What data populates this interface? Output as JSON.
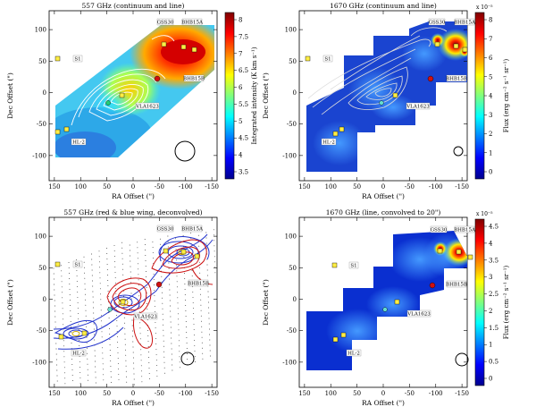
{
  "panels": [
    {
      "id": "p1",
      "title": "557 GHz (continuum and line)",
      "xlabel": "RA Offset (\")",
      "ylabel": "Dec Offset (\")",
      "colorbar": {
        "label": "Integrated intensity (K km s⁻¹)",
        "ticks": [
          "8",
          "7.5",
          "7",
          "6.5",
          "6",
          "5.5",
          "5",
          "4.5",
          "4",
          "3.5"
        ],
        "exponent": ""
      }
    },
    {
      "id": "p2",
      "title": "1670 GHz (continuum and line)",
      "xlabel": "RA Offset (\")",
      "ylabel": "Dec Offset (\")",
      "colorbar": {
        "label": "Flux (erg cm⁻² s⁻¹ sr⁻¹)",
        "ticks": [
          "8",
          "7",
          "6",
          "5",
          "4",
          "3",
          "2",
          "1",
          "0"
        ],
        "exponent": "x 10⁻⁵"
      }
    },
    {
      "id": "p3",
      "title": "557 GHz (red & blue wing, deconvolved)",
      "xlabel": "RA Offset (\")",
      "ylabel": "Dec Offset (\")",
      "colorbar": null
    },
    {
      "id": "p4",
      "title": "1670 GHz (line, convolved to 20\")",
      "xlabel": "RA Offset (\")",
      "ylabel": "Dec Offset (\")",
      "colorbar": {
        "label": "Flux (erg cm⁻² s⁻¹ sr⁻¹)",
        "ticks": [
          "4.5",
          "4",
          "3.5",
          "3",
          "2.5",
          "2",
          "1.5",
          "1",
          "0.5",
          "0"
        ],
        "exponent": "x 10⁻⁵"
      }
    }
  ],
  "sources": [
    "GSS30",
    "BHB15A",
    "BHB15B",
    "VLA1623",
    "S1",
    "HL-2"
  ],
  "chart_data": [
    {
      "type": "heatmap",
      "title": "557 GHz (continuum and line)",
      "xlabel": "RA Offset (\")",
      "ylabel": "Dec Offset (\")",
      "xlim": [
        160,
        -160
      ],
      "ylim": [
        -140,
        130
      ],
      "xticks": [
        150,
        100,
        50,
        0,
        -50,
        -100,
        -150
      ],
      "yticks": [
        100,
        50,
        0,
        -50,
        -100
      ],
      "clim": [
        3.2,
        8.5
      ],
      "colorbar_label": "Integrated intensity (K km s⁻¹)"
    },
    {
      "type": "heatmap",
      "title": "1670 GHz (continuum and line)",
      "xlabel": "RA Offset (\")",
      "ylabel": "Dec Offset (\")",
      "xlim": [
        160,
        -160
      ],
      "ylim": [
        -140,
        130
      ],
      "xticks": [
        150,
        100,
        50,
        0,
        -50,
        -100,
        -150
      ],
      "yticks": [
        100,
        50,
        0,
        -50,
        -100
      ],
      "clim": [
        0,
        8.5
      ],
      "colorbar_label": "Flux (erg cm⁻² s⁻¹ sr⁻¹)",
      "colorbar_scale": "x 10⁻⁵"
    },
    {
      "type": "scatter",
      "title": "557 GHz (red & blue wing, deconvolved)",
      "xlabel": "RA Offset (\")",
      "ylabel": "Dec Offset (\")",
      "xlim": [
        160,
        -160
      ],
      "ylim": [
        -140,
        130
      ],
      "xticks": [
        150,
        100,
        50,
        0,
        -50,
        -100,
        -150
      ],
      "yticks": [
        100,
        50,
        0,
        -50,
        -100
      ]
    },
    {
      "type": "heatmap",
      "title": "1670 GHz (line, convolved to 20\")",
      "xlabel": "RA Offset (\")",
      "ylabel": "Dec Offset (\")",
      "xlim": [
        160,
        -160
      ],
      "ylim": [
        -140,
        130
      ],
      "xticks": [
        150,
        100,
        50,
        0,
        -50,
        -100,
        -150
      ],
      "yticks": [
        100,
        50,
        0,
        -50,
        -100
      ],
      "clim": [
        0,
        4.6
      ],
      "colorbar_label": "Flux (erg cm⁻² s⁻¹ sr⁻¹)",
      "colorbar_scale": "x 10⁻⁵"
    }
  ],
  "colors": {
    "yellow_marker": "#ffee44",
    "red_marker": "#d01010",
    "blue_contour": "#2233cc",
    "red_contour": "#cc1111"
  }
}
